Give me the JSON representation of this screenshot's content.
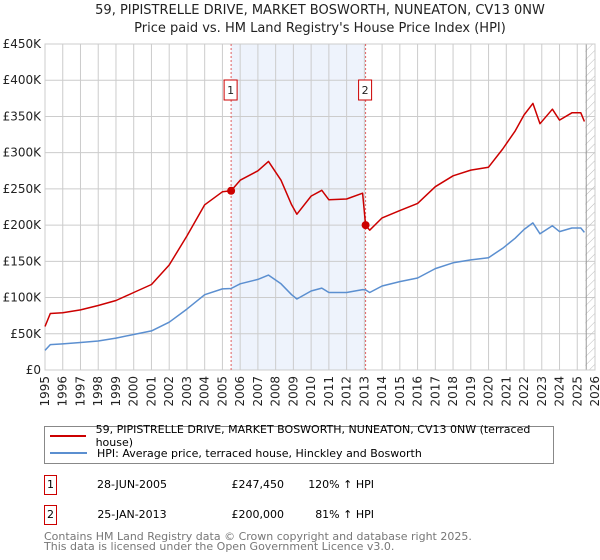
{
  "chart_data": {
    "type": "line",
    "title": "59, PIPISTRELLE DRIVE, MARKET BOSWORTH, NUNEATON, CV13 0NW",
    "subtitle": "Price paid vs. HM Land Registry's House Price Index (HPI)",
    "xlim": [
      1995,
      2026
    ],
    "ylim": [
      0,
      450000
    ],
    "x_ticks": [
      "1995",
      "1996",
      "1997",
      "1998",
      "1999",
      "2000",
      "2001",
      "2002",
      "2003",
      "2004",
      "2005",
      "2006",
      "2007",
      "2008",
      "2009",
      "2010",
      "2011",
      "2012",
      "2013",
      "2014",
      "2015",
      "2016",
      "2017",
      "2018",
      "2019",
      "2020",
      "2021",
      "2022",
      "2023",
      "2024",
      "2025",
      "2026"
    ],
    "y_ticks": [
      {
        "v": 0,
        "label": "£0"
      },
      {
        "v": 50000,
        "label": "£50K"
      },
      {
        "v": 100000,
        "label": "£100K"
      },
      {
        "v": 150000,
        "label": "£150K"
      },
      {
        "v": 200000,
        "label": "£200K"
      },
      {
        "v": 250000,
        "label": "£250K"
      },
      {
        "v": 300000,
        "label": "£300K"
      },
      {
        "v": 350000,
        "label": "£350K"
      },
      {
        "v": 400000,
        "label": "£400K"
      },
      {
        "v": 450000,
        "label": "£450K"
      }
    ],
    "grid": true,
    "shaded_range": [
      2005.49,
      2013.07
    ],
    "hatched_from": 2025.45,
    "series": [
      {
        "name": "59, PIPISTRELLE DRIVE, MARKET BOSWORTH, NUNEATON, CV13 0NW (terraced house)",
        "color": "#cc0000",
        "points": [
          [
            1995.0,
            60000
          ],
          [
            1995.3,
            78000
          ],
          [
            1996,
            79000
          ],
          [
            1997,
            83000
          ],
          [
            1998,
            89000
          ],
          [
            1999,
            96000
          ],
          [
            2000,
            107000
          ],
          [
            2001,
            118000
          ],
          [
            2002,
            145000
          ],
          [
            2003,
            185000
          ],
          [
            2004,
            228000
          ],
          [
            2005,
            246000
          ],
          [
            2005.49,
            247450
          ],
          [
            2006,
            262000
          ],
          [
            2007,
            275000
          ],
          [
            2007.6,
            288000
          ],
          [
            2008.3,
            262000
          ],
          [
            2008.9,
            228000
          ],
          [
            2009.2,
            215000
          ],
          [
            2010,
            240000
          ],
          [
            2010.6,
            248000
          ],
          [
            2011,
            235000
          ],
          [
            2012,
            236000
          ],
          [
            2012.9,
            244000
          ],
          [
            2013.07,
            200000
          ],
          [
            2013.3,
            193000
          ],
          [
            2014,
            210000
          ],
          [
            2015,
            220000
          ],
          [
            2016,
            230000
          ],
          [
            2017,
            253000
          ],
          [
            2018,
            268000
          ],
          [
            2019,
            276000
          ],
          [
            2020,
            280000
          ],
          [
            2020.8,
            305000
          ],
          [
            2021.5,
            330000
          ],
          [
            2022,
            352000
          ],
          [
            2022.5,
            368000
          ],
          [
            2022.9,
            340000
          ],
          [
            2023.6,
            360000
          ],
          [
            2024,
            345000
          ],
          [
            2024.7,
            355000
          ],
          [
            2025.2,
            355000
          ],
          [
            2025.4,
            343000
          ]
        ]
      },
      {
        "name": "HPI: Average price, terraced house, Hinckley and Bosworth",
        "color": "#5b8fd0",
        "points": [
          [
            1995.0,
            27000
          ],
          [
            1995.3,
            35000
          ],
          [
            1996,
            36000
          ],
          [
            1997,
            38000
          ],
          [
            1998,
            40000
          ],
          [
            1999,
            44000
          ],
          [
            2000,
            49000
          ],
          [
            2001,
            54000
          ],
          [
            2002,
            66000
          ],
          [
            2003,
            84000
          ],
          [
            2004,
            104000
          ],
          [
            2005,
            112000
          ],
          [
            2005.49,
            112500
          ],
          [
            2006,
            119000
          ],
          [
            2007,
            125000
          ],
          [
            2007.6,
            131000
          ],
          [
            2008.3,
            119000
          ],
          [
            2008.9,
            104000
          ],
          [
            2009.2,
            98000
          ],
          [
            2010,
            109000
          ],
          [
            2010.6,
            113000
          ],
          [
            2011,
            107000
          ],
          [
            2012,
            107000
          ],
          [
            2012.9,
            111000
          ],
          [
            2013.07,
            110500
          ],
          [
            2013.3,
            107000
          ],
          [
            2014,
            116000
          ],
          [
            2015,
            122000
          ],
          [
            2016,
            127000
          ],
          [
            2017,
            140000
          ],
          [
            2018,
            148000
          ],
          [
            2019,
            152000
          ],
          [
            2020,
            155000
          ],
          [
            2020.8,
            168000
          ],
          [
            2021.5,
            182000
          ],
          [
            2022,
            194000
          ],
          [
            2022.5,
            203000
          ],
          [
            2022.9,
            188000
          ],
          [
            2023.6,
            199000
          ],
          [
            2024,
            191000
          ],
          [
            2024.7,
            196000
          ],
          [
            2025.2,
            196000
          ],
          [
            2025.4,
            190000
          ]
        ]
      }
    ],
    "sales": [
      {
        "label": "1",
        "x": 2005.49,
        "y": 247450
      },
      {
        "label": "2",
        "x": 2013.07,
        "y": 200000
      }
    ]
  },
  "legend": {
    "property": "59, PIPISTRELLE DRIVE, MARKET BOSWORTH, NUNEATON, CV13 0NW (terraced house)",
    "hpi": "HPI: Average price, terraced house, Hinckley and Bosworth"
  },
  "sales_table": [
    {
      "num": "1",
      "date": "28-JUN-2005",
      "price": "£247,450",
      "hpi": "120% ↑ HPI"
    },
    {
      "num": "2",
      "date": "25-JAN-2013",
      "price": "£200,000",
      "hpi": "81% ↑ HPI"
    }
  ],
  "footer": {
    "line1": "Contains HM Land Registry data © Crown copyright and database right 2025.",
    "line2": "This data is licensed under the Open Government Licence v3.0."
  },
  "colors": {
    "property": "#cc0000",
    "hpi": "#5b8fd0",
    "shade": "#eef3fc"
  }
}
